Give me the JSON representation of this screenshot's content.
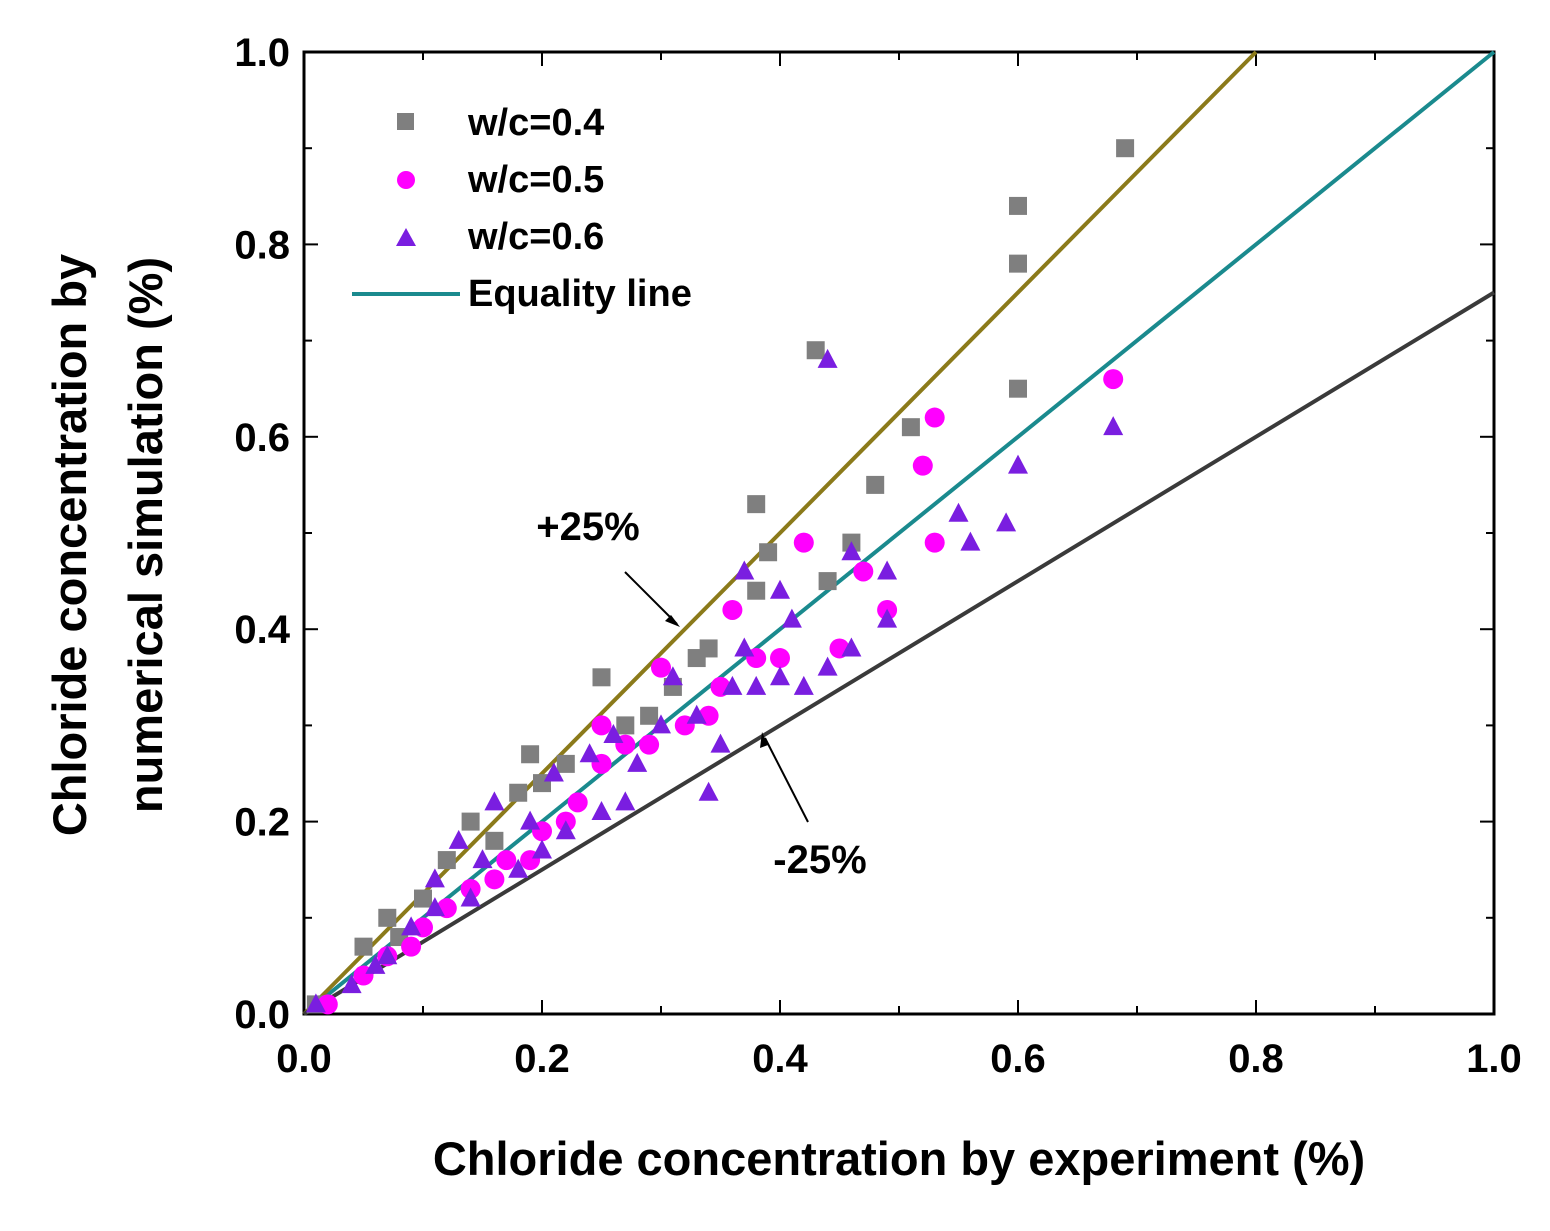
{
  "chart_data": {
    "type": "scatter",
    "xlabel": "Chloride concentration by experiment (%)",
    "ylabel_line1": "Chloride concentration  by",
    "ylabel_line2": "numerical simulation (%)",
    "xlim": [
      0,
      1.0
    ],
    "ylim": [
      0,
      1.0
    ],
    "xticks": [
      "0.0",
      "0.2",
      "0.4",
      "0.6",
      "0.8",
      "1.0"
    ],
    "yticks": [
      "0.0",
      "0.2",
      "0.4",
      "0.6",
      "0.8",
      "1.0"
    ],
    "tick_values": [
      0,
      0.2,
      0.4,
      0.6,
      0.8,
      1.0
    ],
    "legend_position": "top-left",
    "colors": {
      "wc04": "#7f7f7f",
      "wc05": "#ff00ff",
      "wc06": "#7a1ee0",
      "equality": "#1a8a8e",
      "plus25": "#8b7a1a",
      "minus25": "#3a3a3a"
    },
    "series": [
      {
        "name": "w/c=0.4",
        "marker": "square",
        "points": [
          [
            0.01,
            0.01
          ],
          [
            0.05,
            0.07
          ],
          [
            0.07,
            0.1
          ],
          [
            0.08,
            0.08
          ],
          [
            0.1,
            0.12
          ],
          [
            0.12,
            0.16
          ],
          [
            0.14,
            0.2
          ],
          [
            0.16,
            0.18
          ],
          [
            0.18,
            0.23
          ],
          [
            0.19,
            0.27
          ],
          [
            0.2,
            0.24
          ],
          [
            0.22,
            0.26
          ],
          [
            0.25,
            0.35
          ],
          [
            0.27,
            0.3
          ],
          [
            0.29,
            0.31
          ],
          [
            0.31,
            0.34
          ],
          [
            0.33,
            0.37
          ],
          [
            0.34,
            0.38
          ],
          [
            0.38,
            0.44
          ],
          [
            0.38,
            0.53
          ],
          [
            0.39,
            0.48
          ],
          [
            0.43,
            0.69
          ],
          [
            0.44,
            0.45
          ],
          [
            0.46,
            0.49
          ],
          [
            0.48,
            0.55
          ],
          [
            0.51,
            0.61
          ],
          [
            0.6,
            0.65
          ],
          [
            0.6,
            0.78
          ],
          [
            0.6,
            0.84
          ],
          [
            0.69,
            0.9
          ]
        ]
      },
      {
        "name": "w/c=0.5",
        "marker": "circle",
        "points": [
          [
            0.02,
            0.01
          ],
          [
            0.05,
            0.04
          ],
          [
            0.07,
            0.06
          ],
          [
            0.09,
            0.07
          ],
          [
            0.1,
            0.09
          ],
          [
            0.12,
            0.11
          ],
          [
            0.14,
            0.13
          ],
          [
            0.16,
            0.14
          ],
          [
            0.17,
            0.16
          ],
          [
            0.19,
            0.16
          ],
          [
            0.2,
            0.19
          ],
          [
            0.22,
            0.2
          ],
          [
            0.23,
            0.22
          ],
          [
            0.25,
            0.26
          ],
          [
            0.25,
            0.3
          ],
          [
            0.27,
            0.28
          ],
          [
            0.29,
            0.28
          ],
          [
            0.3,
            0.36
          ],
          [
            0.32,
            0.3
          ],
          [
            0.34,
            0.31
          ],
          [
            0.35,
            0.34
          ],
          [
            0.36,
            0.42
          ],
          [
            0.38,
            0.37
          ],
          [
            0.4,
            0.37
          ],
          [
            0.42,
            0.49
          ],
          [
            0.45,
            0.38
          ],
          [
            0.47,
            0.46
          ],
          [
            0.49,
            0.42
          ],
          [
            0.52,
            0.57
          ],
          [
            0.53,
            0.49
          ],
          [
            0.53,
            0.62
          ],
          [
            0.68,
            0.66
          ]
        ]
      },
      {
        "name": "w/c=0.6",
        "marker": "triangle",
        "points": [
          [
            0.01,
            0.01
          ],
          [
            0.04,
            0.03
          ],
          [
            0.06,
            0.05
          ],
          [
            0.07,
            0.06
          ],
          [
            0.09,
            0.09
          ],
          [
            0.11,
            0.14
          ],
          [
            0.11,
            0.11
          ],
          [
            0.13,
            0.18
          ],
          [
            0.14,
            0.12
          ],
          [
            0.15,
            0.16
          ],
          [
            0.16,
            0.22
          ],
          [
            0.18,
            0.15
          ],
          [
            0.19,
            0.2
          ],
          [
            0.2,
            0.17
          ],
          [
            0.21,
            0.25
          ],
          [
            0.22,
            0.19
          ],
          [
            0.24,
            0.27
          ],
          [
            0.25,
            0.21
          ],
          [
            0.26,
            0.29
          ],
          [
            0.27,
            0.22
          ],
          [
            0.28,
            0.26
          ],
          [
            0.3,
            0.3
          ],
          [
            0.31,
            0.35
          ],
          [
            0.33,
            0.31
          ],
          [
            0.34,
            0.23
          ],
          [
            0.35,
            0.28
          ],
          [
            0.36,
            0.34
          ],
          [
            0.37,
            0.38
          ],
          [
            0.37,
            0.46
          ],
          [
            0.38,
            0.34
          ],
          [
            0.4,
            0.35
          ],
          [
            0.4,
            0.44
          ],
          [
            0.41,
            0.41
          ],
          [
            0.42,
            0.34
          ],
          [
            0.44,
            0.36
          ],
          [
            0.44,
            0.68
          ],
          [
            0.46,
            0.38
          ],
          [
            0.46,
            0.48
          ],
          [
            0.49,
            0.46
          ],
          [
            0.49,
            0.41
          ],
          [
            0.55,
            0.52
          ],
          [
            0.56,
            0.49
          ],
          [
            0.59,
            0.51
          ],
          [
            0.6,
            0.57
          ],
          [
            0.68,
            0.61
          ]
        ]
      }
    ],
    "lines": [
      {
        "name": "Equality line",
        "slope": 1.0,
        "color_key": "equality"
      },
      {
        "name": "+25%",
        "slope": 1.25,
        "color_key": "plus25"
      },
      {
        "name": "-25%",
        "slope": 0.75,
        "color_key": "minus25"
      }
    ],
    "legend": [
      "w/c=0.4",
      "w/c=0.5",
      "w/c=0.6",
      "Equality line"
    ],
    "annotations": {
      "plus25": "+25%",
      "minus25": "-25%"
    }
  }
}
